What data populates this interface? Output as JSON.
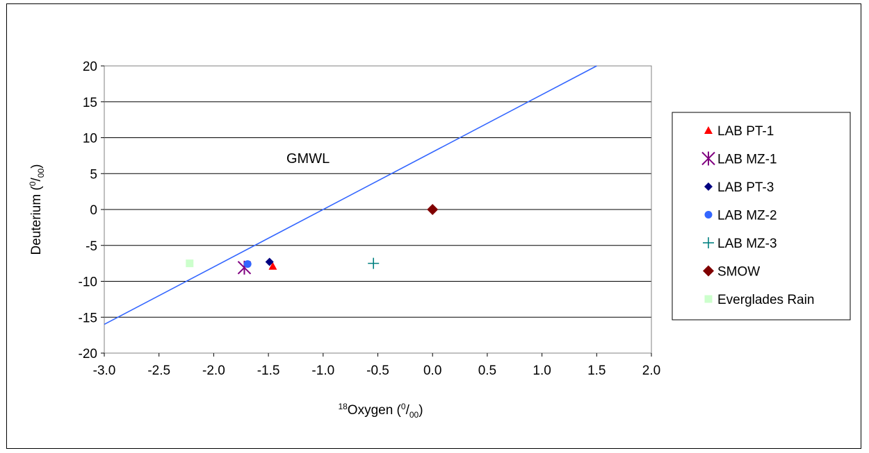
{
  "chart_data": {
    "type": "scatter",
    "xlabel": {
      "sup": "18",
      "main": "Oxygen (",
      "unit_sup": "0",
      "unit_mid": "/",
      "unit_sub": "00",
      "close": ")"
    },
    "ylabel": {
      "main": "Deuterium (",
      "unit_sup": "0",
      "unit_mid": "/",
      "unit_sub": "00",
      "close": ")"
    },
    "xlim": [
      -3.0,
      2.0
    ],
    "ylim": [
      -20,
      20
    ],
    "x_ticks": [
      "-3.0",
      "-2.5",
      "-2.0",
      "-1.5",
      "-1.0",
      "-0.5",
      "0.0",
      "0.5",
      "1.0",
      "1.5",
      "2.0"
    ],
    "y_ticks": [
      "20",
      "15",
      "10",
      "5",
      "0",
      "-5",
      "-10",
      "-15",
      "-20"
    ],
    "grid": "horizontal",
    "legend_position": "right",
    "annotation": "GMWL",
    "line": {
      "name": "GMWL",
      "slope": 8,
      "intercept": 8,
      "color": "#3366ff"
    },
    "series": [
      {
        "name": "LAB PT-1",
        "marker": "triangle",
        "color": "#ff0000",
        "x": -1.46,
        "y": -7.9
      },
      {
        "name": "LAB MZ-1",
        "marker": "asterisk",
        "color": "#800080",
        "x": -1.72,
        "y": -8.1
      },
      {
        "name": "LAB PT-3",
        "marker": "diamond",
        "color": "#000080",
        "x": -1.49,
        "y": -7.3
      },
      {
        "name": "LAB MZ-2",
        "marker": "circle",
        "color": "#3366ff",
        "x": -1.69,
        "y": -7.6
      },
      {
        "name": "LAB MZ-3",
        "marker": "plus",
        "color": "#008080",
        "x": -0.54,
        "y": -7.5
      },
      {
        "name": "SMOW",
        "marker": "diamond",
        "color": "#800000",
        "x": 0.0,
        "y": 0.0
      },
      {
        "name": "Everglades Rain",
        "marker": "square",
        "color": "#ccffcc",
        "x": -2.22,
        "y": -7.5
      }
    ]
  }
}
